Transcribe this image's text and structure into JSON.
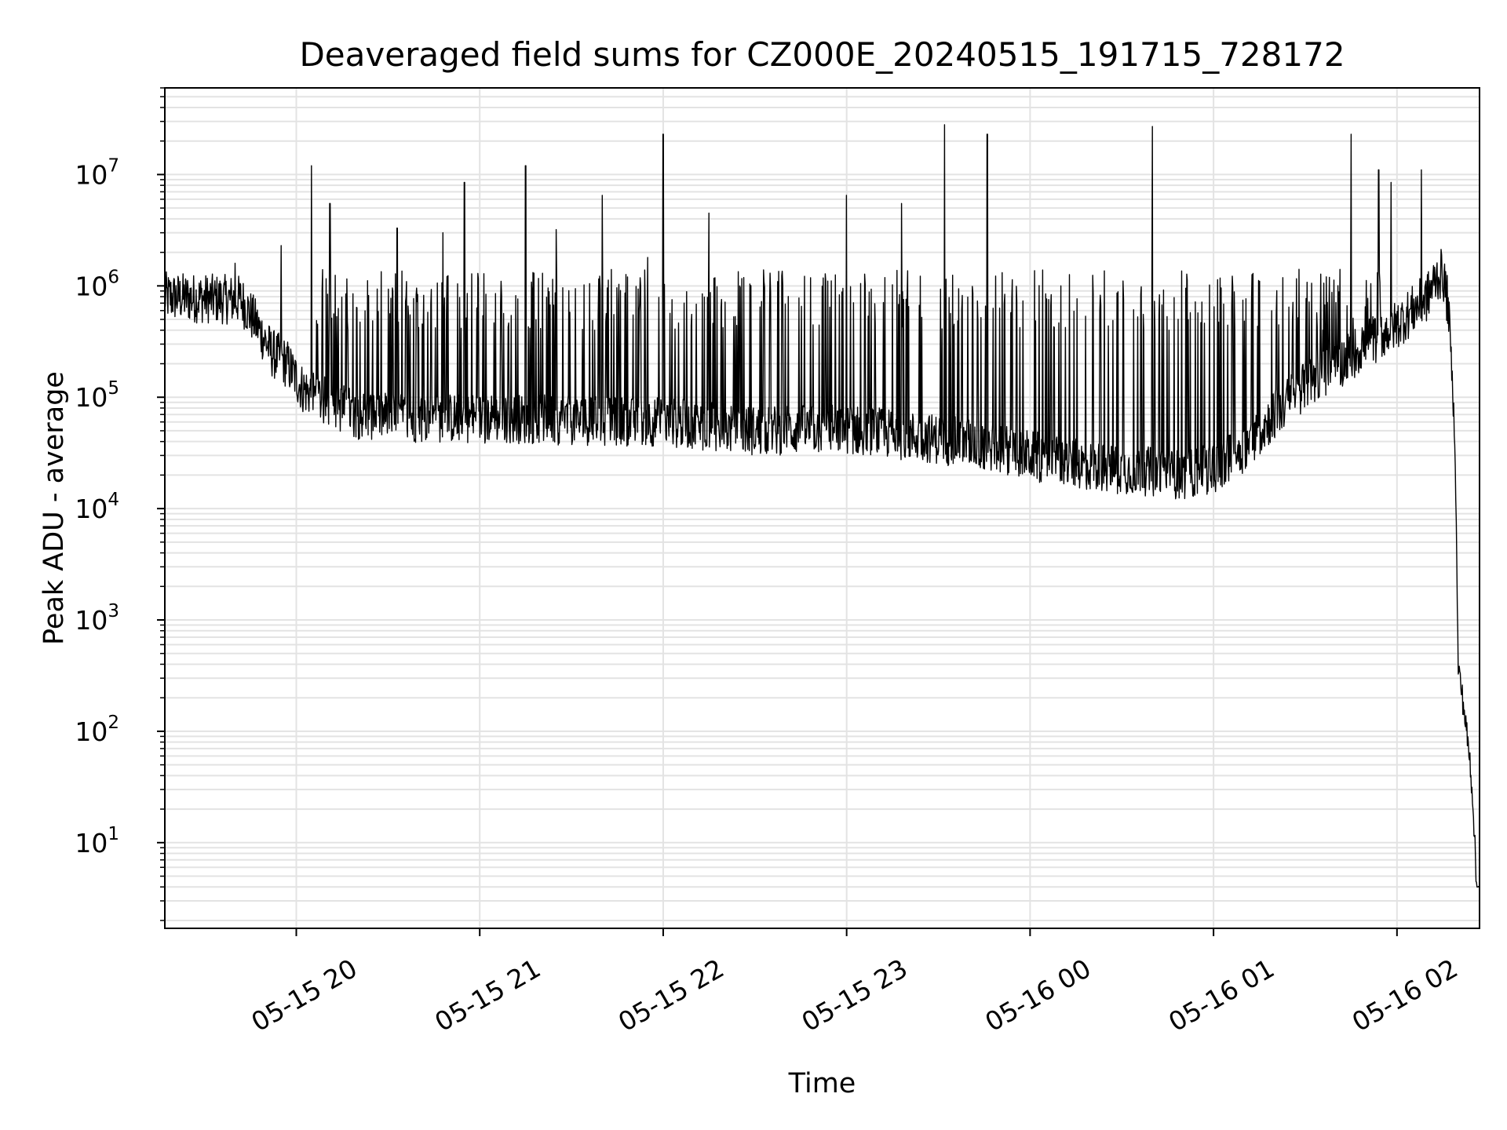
{
  "chart_data": {
    "type": "line",
    "title": "Deaveraged field sums for CZ000E_20240515_191715_728172",
    "xlabel": "Time",
    "ylabel": "Peak ADU - average",
    "y_scale": "log",
    "ylim": [
      1.7,
      60000000
    ],
    "xlim": [
      "2024-05-15 19:17",
      "2024-05-16 02:27"
    ],
    "x_ticks": [
      "05-15 20",
      "05-15 21",
      "05-15 22",
      "05-15 23",
      "05-16 00",
      "05-16 01",
      "05-16 02"
    ],
    "y_ticks": [
      {
        "base": "10",
        "exp": "1"
      },
      {
        "base": "10",
        "exp": "2"
      },
      {
        "base": "10",
        "exp": "3"
      },
      {
        "base": "10",
        "exp": "4"
      },
      {
        "base": "10",
        "exp": "5"
      },
      {
        "base": "10",
        "exp": "6"
      },
      {
        "base": "10",
        "exp": "7"
      }
    ],
    "grid": true,
    "line_color": "#000000",
    "grid_color": "#e3e3e3",
    "series": [
      {
        "values": [
          [
            "2024-05-15 19:17",
            800000
          ],
          [
            "2024-05-15 19:25",
            780000
          ],
          [
            "2024-05-15 19:35",
            760000
          ],
          [
            "2024-05-15 19:42",
            750000
          ],
          [
            "2024-05-15 19:47",
            450000
          ],
          [
            "2024-05-15 19:52",
            250000
          ],
          [
            "2024-05-15 19:57",
            200000
          ],
          [
            "2024-05-15 20:02",
            120000
          ],
          [
            "2024-05-15 20:10",
            90000
          ],
          [
            "2024-05-15 20:20",
            70000
          ],
          [
            "2024-05-15 20:40",
            65000
          ],
          [
            "2024-05-15 21:00",
            65000
          ],
          [
            "2024-05-15 21:30",
            62000
          ],
          [
            "2024-05-15 22:00",
            60000
          ],
          [
            "2024-05-15 22:30",
            50000
          ],
          [
            "2024-05-15 23:00",
            52000
          ],
          [
            "2024-05-15 23:30",
            42000
          ],
          [
            "2024-05-15 23:50",
            35000
          ],
          [
            "2024-05-16 00:05",
            28000
          ],
          [
            "2024-05-16 00:20",
            24000
          ],
          [
            "2024-05-16 00:35",
            22000
          ],
          [
            "2024-05-16 00:50",
            20000
          ],
          [
            "2024-05-16 01:00",
            23000
          ],
          [
            "2024-05-16 01:10",
            35000
          ],
          [
            "2024-05-16 01:20",
            70000
          ],
          [
            "2024-05-16 01:30",
            130000
          ],
          [
            "2024-05-16 01:40",
            190000
          ],
          [
            "2024-05-16 01:50",
            300000
          ],
          [
            "2024-05-16 02:00",
            450000
          ],
          [
            "2024-05-16 02:10",
            800000
          ],
          [
            "2024-05-16 02:13",
            1200000
          ],
          [
            "2024-05-16 02:15",
            1300000
          ],
          [
            "2024-05-16 02:17",
            600000
          ],
          [
            "2024-05-16 02:19",
            40000
          ],
          [
            "2024-05-16 02:20",
            400
          ],
          [
            "2024-05-16 02:22",
            150
          ],
          [
            "2024-05-16 02:24",
            50
          ],
          [
            "2024-05-16 02:25",
            20
          ],
          [
            "2024-05-16 02:26",
            4
          ],
          [
            "2024-05-16 02:27",
            4
          ]
        ],
        "spikes": [
          [
            "2024-05-15 19:40",
            1600000
          ],
          [
            "2024-05-15 19:55",
            2300000
          ],
          [
            "2024-05-15 20:05",
            12000000
          ],
          [
            "2024-05-15 20:11",
            5500000
          ],
          [
            "2024-05-15 20:33",
            3300000
          ],
          [
            "2024-05-15 20:48",
            3000000
          ],
          [
            "2024-05-15 20:55",
            8500000
          ],
          [
            "2024-05-15 21:07",
            1100000
          ],
          [
            "2024-05-15 21:15",
            12000000
          ],
          [
            "2024-05-15 21:25",
            3200000
          ],
          [
            "2024-05-15 21:40",
            6500000
          ],
          [
            "2024-05-15 21:55",
            1800000
          ],
          [
            "2024-05-15 22:00",
            23000000
          ],
          [
            "2024-05-15 22:15",
            4500000
          ],
          [
            "2024-05-15 22:35",
            1300000
          ],
          [
            "2024-05-15 23:00",
            6500000
          ],
          [
            "2024-05-15 23:18",
            5500000
          ],
          [
            "2024-05-15 23:32",
            28000000
          ],
          [
            "2024-05-15 23:46",
            23000000
          ],
          [
            "2024-05-16 00:10",
            1000000
          ],
          [
            "2024-05-16 00:40",
            27000000
          ],
          [
            "2024-05-16 01:15",
            1100000
          ],
          [
            "2024-05-16 01:45",
            23000000
          ],
          [
            "2024-05-16 01:54",
            11000000
          ],
          [
            "2024-05-16 01:58",
            8500000
          ],
          [
            "2024-05-16 02:08",
            11000000
          ]
        ]
      }
    ]
  }
}
